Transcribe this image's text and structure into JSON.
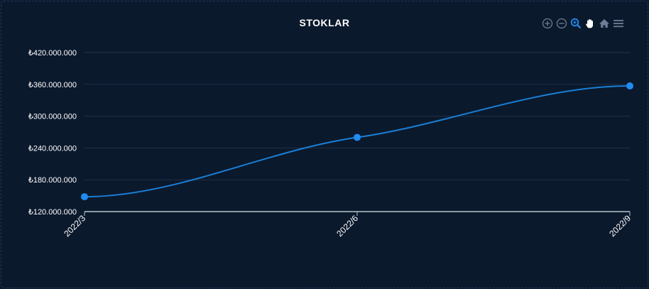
{
  "chart_data": {
    "type": "line",
    "title": "STOKLAR",
    "categories": [
      "2022/3",
      "2022/6",
      "2022/9"
    ],
    "series": [
      {
        "values": [
          148000000,
          260000000,
          357000000
        ]
      }
    ],
    "y_ticks": [
      "₺120.000.000",
      "₺180.000.000",
      "₺240.000.000",
      "₺300.000.000",
      "₺360.000.000",
      "₺420.000.000"
    ],
    "ylim": [
      120000000,
      420000000
    ],
    "grid": true,
    "smooth": true,
    "colors": {
      "line": "#1a7fd6",
      "marker": "#1e8cf0",
      "grid": "#1f3148",
      "axis": "#b8c2cc"
    }
  },
  "toolbar": {
    "icons": [
      "zoom-in-icon",
      "zoom-out-icon",
      "selection-zoom-icon",
      "pan-hand-icon",
      "home-reset-icon",
      "menu-icon"
    ],
    "active_color": "#1e8cf0",
    "idle_color": "#6e7f95"
  }
}
